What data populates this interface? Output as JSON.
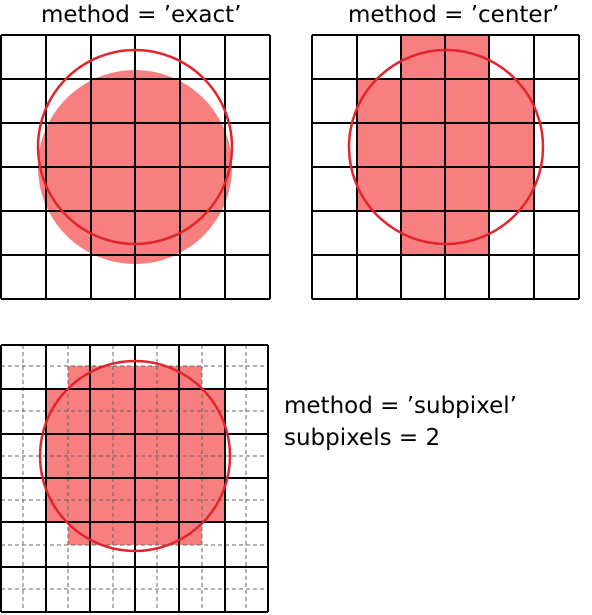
{
  "panels": [
    {
      "id": "exact",
      "label": "method = ’exact’"
    },
    {
      "id": "center",
      "label": "method = ’center’"
    },
    {
      "id": "subpixel",
      "label_line1": "method = ’subpixel’",
      "label_line2": "subpixels = 2"
    }
  ],
  "colors": {
    "fill": "#f77f7f",
    "circle_stroke": "#e0252b",
    "grid": "#000000",
    "subgrid": "#666666"
  }
}
